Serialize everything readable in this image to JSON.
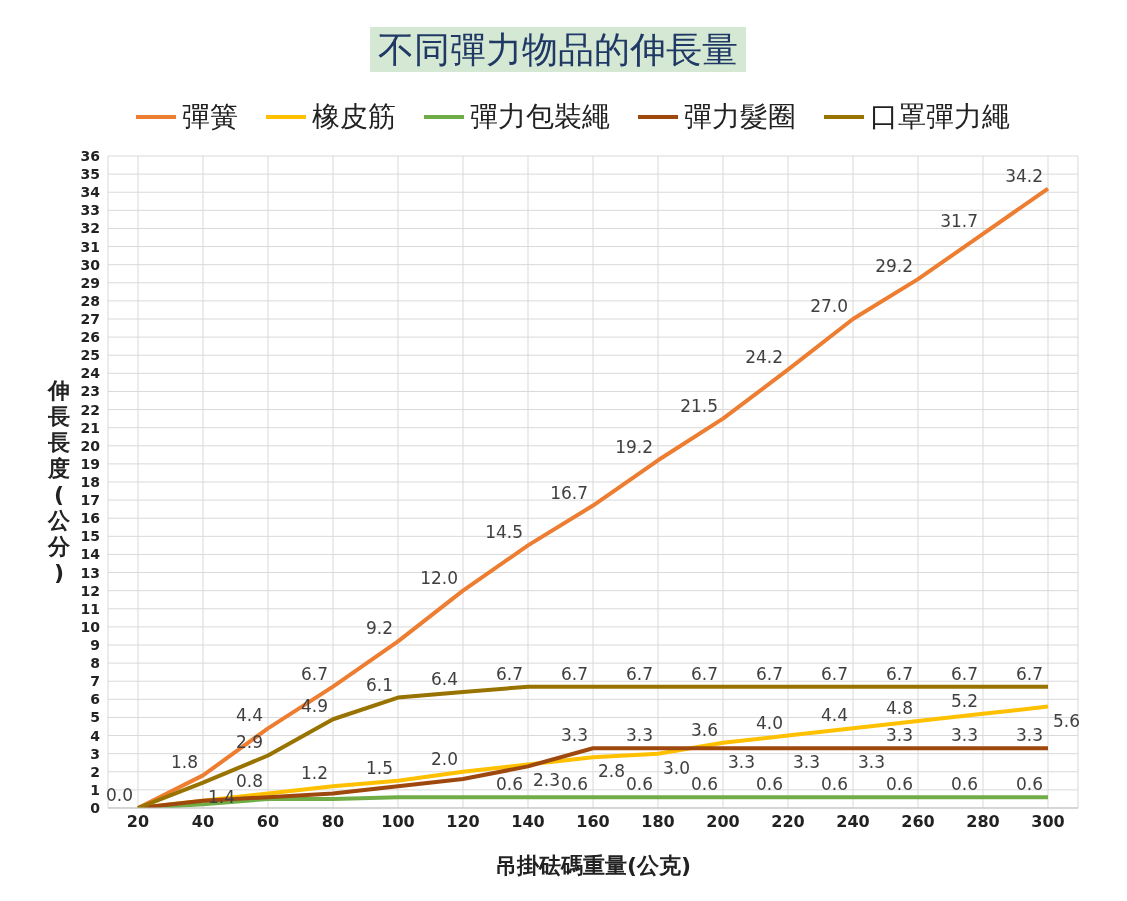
{
  "chart_data": {
    "type": "line",
    "title": "不同彈力物品的伸長量",
    "xlabel": "吊掛砝碼重量(公克)",
    "ylabel": "伸長長度(公分)",
    "categories": [
      "20",
      "40",
      "60",
      "80",
      "100",
      "120",
      "140",
      "160",
      "180",
      "200",
      "220",
      "240",
      "260",
      "280",
      "300"
    ],
    "series": [
      {
        "name": "彈簧",
        "color": "#ed7d31",
        "values": [
          0.0,
          1.8,
          4.4,
          6.7,
          9.2,
          12.0,
          14.5,
          16.7,
          19.2,
          21.5,
          24.2,
          27.0,
          29.2,
          31.7,
          34.2
        ],
        "value_labels": [
          "0.0",
          "1.8",
          "4.4",
          "6.7",
          "9.2",
          "12.0",
          "14.5",
          "16.7",
          "19.2",
          "21.5",
          "24.2",
          "27.0",
          "29.2",
          "31.7",
          "34.2"
        ]
      },
      {
        "name": "橡皮筋",
        "color": "#ffc000",
        "values": [
          0.0,
          0.4,
          0.8,
          1.2,
          1.5,
          2.0,
          2.4,
          2.8,
          3.0,
          3.6,
          4.0,
          4.4,
          4.8,
          5.2,
          5.6
        ],
        "value_labels": [
          null,
          null,
          "0.8",
          "1.2",
          "1.5",
          "2.0",
          null,
          "2.8",
          "3.0",
          "3.6",
          "4.0",
          "4.4",
          "4.8",
          "5.2",
          "5.6"
        ]
      },
      {
        "name": "彈力包裝繩",
        "color": "#70ad47",
        "values": [
          0.0,
          0.2,
          0.5,
          0.5,
          0.6,
          0.6,
          0.6,
          0.6,
          0.6,
          0.6,
          0.6,
          0.6,
          0.6,
          0.6,
          0.6
        ],
        "value_labels": [
          null,
          null,
          null,
          null,
          null,
          null,
          "0.6",
          "0.6",
          "0.6",
          "0.6",
          "0.6",
          "0.6",
          "0.6",
          "0.6",
          "0.6"
        ]
      },
      {
        "name": "彈力髮圈",
        "color": "#9e480e",
        "values": [
          0.0,
          0.4,
          0.6,
          0.8,
          1.2,
          1.6,
          2.3,
          3.3,
          3.3,
          3.3,
          3.3,
          3.3,
          3.3,
          3.3,
          3.3
        ],
        "value_labels": [
          null,
          null,
          null,
          null,
          null,
          null,
          "2.3",
          "3.3",
          "3.3",
          "3.3",
          "3.3",
          "3.3",
          "3.3",
          "3.3",
          "3.3"
        ]
      },
      {
        "name": "口罩彈力繩",
        "color": "#997300",
        "values": [
          0.0,
          1.4,
          2.9,
          4.9,
          6.1,
          6.4,
          6.7,
          6.7,
          6.7,
          6.7,
          6.7,
          6.7,
          6.7,
          6.7,
          6.7
        ],
        "value_labels": [
          null,
          "1.4",
          "2.9",
          "4.9",
          "6.1",
          "6.4",
          "6.7",
          "6.7",
          "6.7",
          "6.7",
          "6.7",
          "6.7",
          "6.7",
          "6.7",
          "6.7"
        ]
      }
    ],
    "ylim": [
      0,
      36
    ],
    "yticks": [
      0,
      1,
      2,
      3,
      4,
      5,
      6,
      7,
      8,
      9,
      10,
      11,
      12,
      13,
      14,
      15,
      16,
      17,
      18,
      19,
      20,
      21,
      22,
      23,
      24,
      25,
      26,
      27,
      28,
      29,
      30,
      31,
      32,
      33,
      34,
      35,
      36
    ],
    "grid": true,
    "legend": "top",
    "marker": "none",
    "line_style": "solid"
  }
}
